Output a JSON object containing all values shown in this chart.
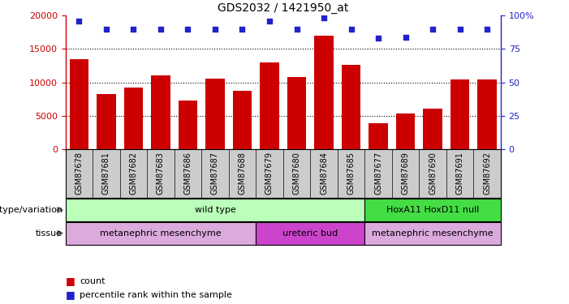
{
  "title": "GDS2032 / 1421950_at",
  "samples": [
    "GSM87678",
    "GSM87681",
    "GSM87682",
    "GSM87683",
    "GSM87686",
    "GSM87687",
    "GSM87688",
    "GSM87679",
    "GSM87680",
    "GSM87684",
    "GSM87685",
    "GSM87677",
    "GSM87689",
    "GSM87690",
    "GSM87691",
    "GSM87692"
  ],
  "counts": [
    13500,
    8300,
    9200,
    11000,
    7300,
    10600,
    8700,
    13000,
    10800,
    17000,
    12600,
    3900,
    5400,
    6100,
    10500,
    10500
  ],
  "percentiles": [
    96,
    90,
    90,
    90,
    90,
    90,
    90,
    96,
    90,
    98,
    90,
    83,
    84,
    90,
    90,
    90
  ],
  "bar_color": "#cc0000",
  "dot_color": "#2222cc",
  "ylim_left": [
    0,
    20000
  ],
  "ylim_right": [
    0,
    100
  ],
  "yticks_left": [
    0,
    5000,
    10000,
    15000,
    20000
  ],
  "yticks_right": [
    0,
    25,
    50,
    75,
    100
  ],
  "ytick_labels_left": [
    "0",
    "5000",
    "10000",
    "15000",
    "20000"
  ],
  "ytick_labels_right": [
    "0",
    "25",
    "50",
    "75",
    "100%"
  ],
  "genotype_groups": [
    {
      "label": "wild type",
      "start": 0,
      "end": 11,
      "color": "#bbffbb"
    },
    {
      "label": "HoxA11 HoxD11 null",
      "start": 11,
      "end": 16,
      "color": "#44dd44"
    }
  ],
  "tissue_groups": [
    {
      "label": "metanephric mesenchyme",
      "start": 0,
      "end": 7,
      "color": "#ddaadd"
    },
    {
      "label": "ureteric bud",
      "start": 7,
      "end": 11,
      "color": "#cc44cc"
    },
    {
      "label": "metanephric mesenchyme",
      "start": 11,
      "end": 16,
      "color": "#ddaadd"
    }
  ],
  "legend_count_color": "#cc0000",
  "legend_pct_color": "#2222cc",
  "genotype_label": "genotype/variation",
  "tissue_label": "tissue",
  "tick_bg_color": "#cccccc",
  "chart_bg_color": "#ffffff"
}
